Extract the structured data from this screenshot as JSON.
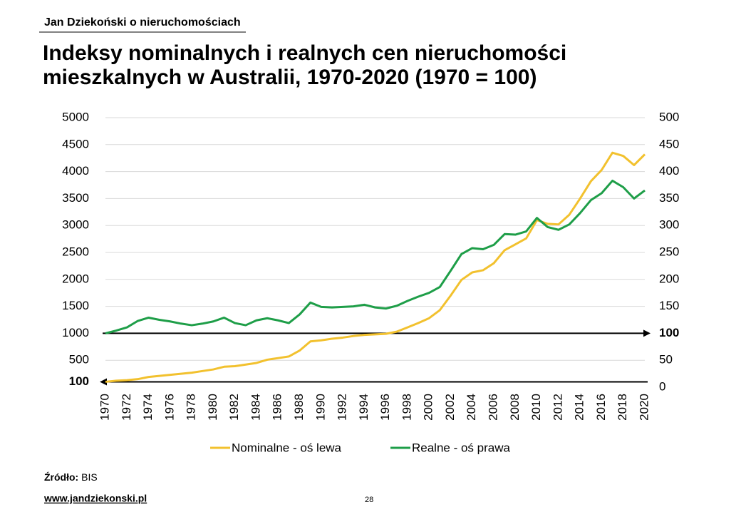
{
  "header": {
    "author": "Jan Dziekoński o nieruchomościach"
  },
  "chart_data": {
    "type": "line",
    "title": [
      "Indeksy nominalnych i realnych cen nieruchomości",
      "mieszkalnych w Australii, 1970-2020 (1970 = 100)"
    ],
    "x": [
      1970,
      1971,
      1972,
      1973,
      1974,
      1975,
      1976,
      1977,
      1978,
      1979,
      1980,
      1981,
      1982,
      1983,
      1984,
      1985,
      1986,
      1987,
      1988,
      1989,
      1990,
      1991,
      1992,
      1993,
      1994,
      1995,
      1996,
      1997,
      1998,
      1999,
      2000,
      2001,
      2002,
      2003,
      2004,
      2005,
      2006,
      2007,
      2008,
      2009,
      2010,
      2011,
      2012,
      2013,
      2014,
      2015,
      2016,
      2017,
      2018,
      2019,
      2020
    ],
    "xlim": [
      1970,
      2020
    ],
    "xticks": [
      1970,
      1972,
      1974,
      1976,
      1978,
      1980,
      1982,
      1984,
      1986,
      1988,
      1990,
      1992,
      1994,
      1996,
      1998,
      2000,
      2002,
      2004,
      2006,
      2008,
      2010,
      2012,
      2014,
      2016,
      2018,
      2020
    ],
    "ylim": [
      0,
      5000
    ],
    "yticks": [
      100,
      500,
      1000,
      1500,
      2000,
      2500,
      3000,
      3500,
      4000,
      4500,
      5000
    ],
    "y2lim": [
      0,
      500
    ],
    "y2ticks": [
      0,
      50,
      100,
      150,
      200,
      250,
      300,
      350,
      400,
      450,
      500
    ],
    "grid": true,
    "arrows": [
      {
        "axis": "y",
        "value": 100,
        "direction": "left"
      },
      {
        "axis": "y2",
        "value": 100,
        "direction": "right"
      }
    ],
    "series": [
      {
        "name": "Nominalne - oś lewa",
        "color": "#f2c12e",
        "axis": "y",
        "values": [
          100,
          120,
          130,
          150,
          190,
          210,
          230,
          250,
          270,
          300,
          330,
          380,
          390,
          420,
          450,
          510,
          540,
          570,
          680,
          850,
          870,
          900,
          920,
          950,
          970,
          980,
          990,
          1030,
          1110,
          1190,
          1280,
          1430,
          1700,
          1990,
          2130,
          2170,
          2300,
          2540,
          2650,
          2760,
          3100,
          3030,
          3020,
          3200,
          3500,
          3820,
          4030,
          4350,
          4290,
          4120,
          4320
        ]
      },
      {
        "name": "Realne - oś prawa",
        "color": "#1e9e48",
        "axis": "y2",
        "values": [
          100,
          105,
          111,
          123,
          129,
          125,
          122,
          118,
          115,
          118,
          122,
          129,
          119,
          115,
          124,
          128,
          124,
          119,
          135,
          157,
          149,
          148,
          149,
          150,
          153,
          148,
          146,
          151,
          160,
          168,
          175,
          186,
          216,
          247,
          258,
          256,
          264,
          284,
          283,
          289,
          314,
          297,
          292,
          302,
          323,
          347,
          360,
          383,
          371,
          350,
          365
        ]
      }
    ]
  },
  "footer": {
    "source_label": "Źródło:",
    "source": "BIS",
    "url": "www.jandziekonski.pl",
    "page": "28"
  }
}
